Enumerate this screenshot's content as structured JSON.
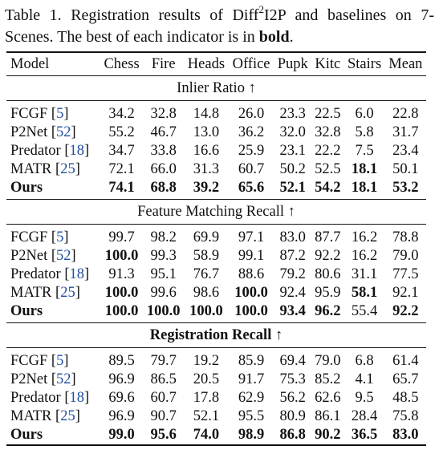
{
  "caption": {
    "label": "Table 1.",
    "text_a": "Registration results of Diff",
    "sup": "2",
    "text_b": "I2P and baselines on 7-Scenes. The best of each indicator is in ",
    "bold_word": "bold",
    "end": "."
  },
  "columns": [
    "Model",
    "Chess",
    "Fire",
    "Heads",
    "Office",
    "Pupk",
    "Kitc",
    "Stairs",
    "Mean"
  ],
  "sections": [
    {
      "title": "Inlier Ratio ↑",
      "title_bold": false,
      "rows": [
        {
          "model": "FCGF",
          "ref": "5",
          "values": [
            "34.2",
            "32.8",
            "14.8",
            "26.0",
            "23.3",
            "22.5",
            "6.0",
            "22.8"
          ],
          "bold": [
            false,
            false,
            false,
            false,
            false,
            false,
            false,
            false
          ],
          "model_bold": false
        },
        {
          "model": "P2Net",
          "ref": "52",
          "values": [
            "55.2",
            "46.7",
            "13.0",
            "36.2",
            "32.0",
            "32.8",
            "5.8",
            "31.7"
          ],
          "bold": [
            false,
            false,
            false,
            false,
            false,
            false,
            false,
            false
          ],
          "model_bold": false
        },
        {
          "model": "Predator",
          "ref": "18",
          "values": [
            "34.7",
            "33.8",
            "16.6",
            "25.9",
            "23.1",
            "22.2",
            "7.5",
            "23.4"
          ],
          "bold": [
            false,
            false,
            false,
            false,
            false,
            false,
            false,
            false
          ],
          "model_bold": false
        },
        {
          "model": "MATR",
          "ref": "25",
          "values": [
            "72.1",
            "66.0",
            "31.3",
            "60.7",
            "50.2",
            "52.5",
            "18.1",
            "50.1"
          ],
          "bold": [
            false,
            false,
            false,
            false,
            false,
            false,
            true,
            false
          ],
          "model_bold": false
        },
        {
          "model": "Ours",
          "ref": "",
          "values": [
            "74.1",
            "68.8",
            "39.2",
            "65.6",
            "52.1",
            "54.2",
            "18.1",
            "53.2"
          ],
          "bold": [
            true,
            true,
            true,
            true,
            true,
            true,
            true,
            true
          ],
          "model_bold": true
        }
      ]
    },
    {
      "title": "Feature Matching Recall ↑",
      "title_bold": false,
      "rows": [
        {
          "model": "FCGF",
          "ref": "5",
          "values": [
            "99.7",
            "98.2",
            "69.9",
            "97.1",
            "83.0",
            "87.7",
            "16.2",
            "78.8"
          ],
          "bold": [
            false,
            false,
            false,
            false,
            false,
            false,
            false,
            false
          ],
          "model_bold": false
        },
        {
          "model": "P2Net",
          "ref": "52",
          "values": [
            "100.0",
            "99.3",
            "58.9",
            "99.1",
            "87.2",
            "92.2",
            "16.2",
            "79.0"
          ],
          "bold": [
            true,
            false,
            false,
            false,
            false,
            false,
            false,
            false
          ],
          "model_bold": false
        },
        {
          "model": "Predator",
          "ref": "18",
          "values": [
            "91.3",
            "95.1",
            "76.7",
            "88.6",
            "79.2",
            "80.6",
            "31.1",
            "77.5"
          ],
          "bold": [
            false,
            false,
            false,
            false,
            false,
            false,
            false,
            false
          ],
          "model_bold": false
        },
        {
          "model": "MATR",
          "ref": "25",
          "values": [
            "100.0",
            "99.6",
            "98.6",
            "100.0",
            "92.4",
            "95.9",
            "58.1",
            "92.1"
          ],
          "bold": [
            true,
            false,
            false,
            true,
            false,
            false,
            true,
            false
          ],
          "model_bold": false
        },
        {
          "model": "Ours",
          "ref": "",
          "values": [
            "100.0",
            "100.0",
            "100.0",
            "100.0",
            "93.4",
            "96.2",
            "55.4",
            "92.2"
          ],
          "bold": [
            true,
            true,
            true,
            true,
            true,
            true,
            false,
            true
          ],
          "model_bold": true
        }
      ]
    },
    {
      "title": "Registration Recall ↑",
      "title_bold": true,
      "rows": [
        {
          "model": "FCGF",
          "ref": "5",
          "values": [
            "89.5",
            "79.7",
            "19.2",
            "85.9",
            "69.4",
            "79.0",
            "6.8",
            "61.4"
          ],
          "bold": [
            false,
            false,
            false,
            false,
            false,
            false,
            false,
            false
          ],
          "model_bold": false
        },
        {
          "model": "P2Net",
          "ref": "52",
          "values": [
            "96.9",
            "86.5",
            "20.5",
            "91.7",
            "75.3",
            "85.2",
            "4.1",
            "65.7"
          ],
          "bold": [
            false,
            false,
            false,
            false,
            false,
            false,
            false,
            false
          ],
          "model_bold": false
        },
        {
          "model": "Predator",
          "ref": "18",
          "values": [
            "69.6",
            "60.7",
            "17.8",
            "62.9",
            "56.2",
            "62.6",
            "9.5",
            "48.5"
          ],
          "bold": [
            false,
            false,
            false,
            false,
            false,
            false,
            false,
            false
          ],
          "model_bold": false
        },
        {
          "model": "MATR",
          "ref": "25",
          "values": [
            "96.9",
            "90.7",
            "52.1",
            "95.5",
            "80.9",
            "86.1",
            "28.4",
            "75.8"
          ],
          "bold": [
            false,
            false,
            false,
            false,
            false,
            false,
            false,
            false
          ],
          "model_bold": false
        },
        {
          "model": "Ours",
          "ref": "",
          "values": [
            "99.0",
            "95.6",
            "74.0",
            "98.9",
            "86.8",
            "90.2",
            "36.5",
            "83.0"
          ],
          "bold": [
            true,
            true,
            true,
            true,
            true,
            true,
            true,
            true
          ],
          "model_bold": true
        }
      ]
    }
  ]
}
